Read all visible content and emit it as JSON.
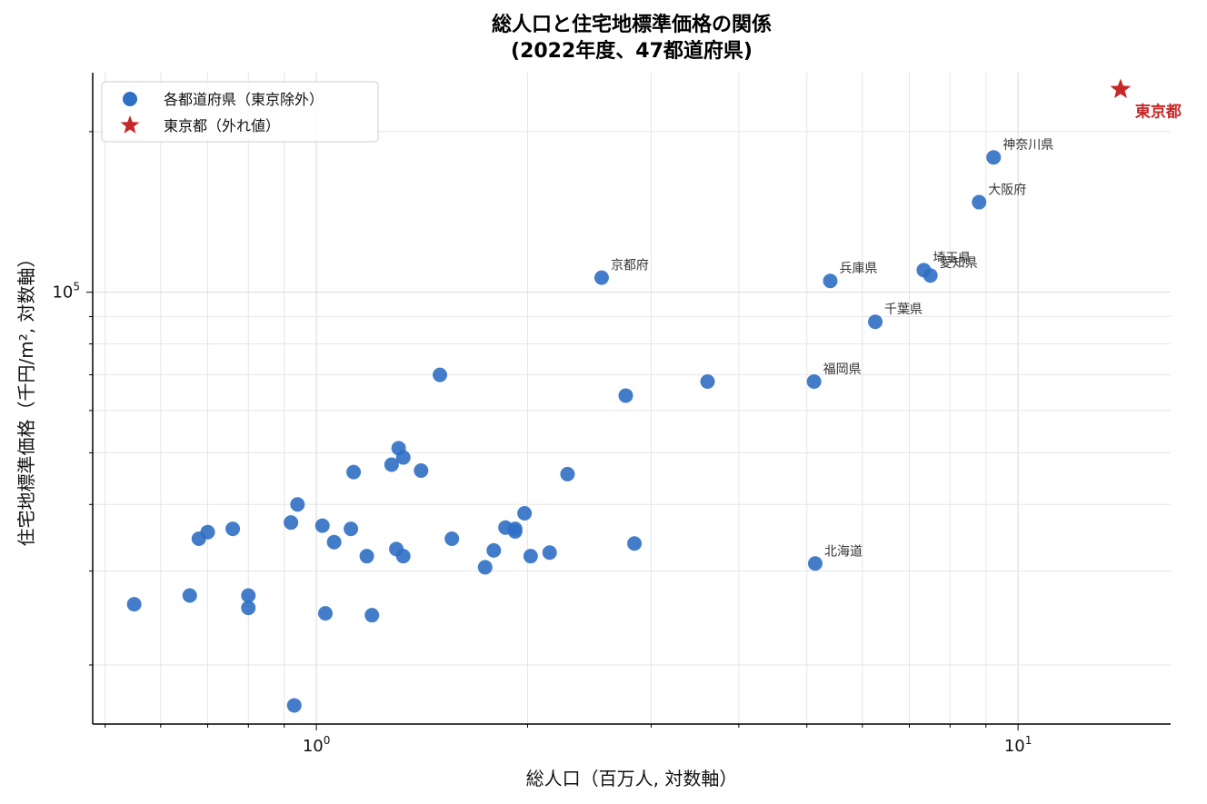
{
  "chart_data": {
    "type": "scatter",
    "title_lines": [
      "総人口と住宅地標準価格の関係",
      "(2022年度、47都道府県)"
    ],
    "xlabel": "総人口（百万人, 対数軸）",
    "ylabel": "住宅地標準価格（千円/m², 対数軸）",
    "x_scale": "log",
    "y_scale": "log",
    "xlim": [
      0.48,
      16.5
    ],
    "ylim": [
      15500,
      258000
    ],
    "grid": true,
    "legend_position": "top-left",
    "x_ticks": [
      {
        "value": 1,
        "base": "10",
        "exp": "0"
      },
      {
        "value": 10,
        "base": "10",
        "exp": "1"
      }
    ],
    "y_ticks": [
      {
        "value": 100000,
        "base": "10",
        "exp": "5"
      }
    ],
    "colors": {
      "points": "#2f6fc4",
      "tokyo": "#c62828"
    },
    "series": [
      {
        "name": "各都道府県（東京除外）",
        "marker": "circle",
        "points": [
          {
            "x": 5.14,
            "y": 31000,
            "label": "北海道"
          },
          {
            "x": 1.2,
            "y": 24800
          },
          {
            "x": 1.18,
            "y": 32000
          },
          {
            "x": 2.28,
            "y": 45600
          },
          {
            "x": 0.93,
            "y": 16800
          },
          {
            "x": 1.03,
            "y": 25000
          },
          {
            "x": 1.79,
            "y": 32800
          },
          {
            "x": 2.84,
            "y": 33800
          },
          {
            "x": 1.92,
            "y": 36000
          },
          {
            "x": 1.92,
            "y": 35600
          },
          {
            "x": 7.34,
            "y": 110000,
            "label": "埼玉県"
          },
          {
            "x": 6.26,
            "y": 88000,
            "label": "千葉県"
          },
          {
            "x": 9.23,
            "y": 179000,
            "label": "神奈川県"
          },
          {
            "x": 2.15,
            "y": 32500
          },
          {
            "x": 1.02,
            "y": 36500
          },
          {
            "x": 1.13,
            "y": 46000
          },
          {
            "x": 0.76,
            "y": 36000
          },
          {
            "x": 0.8,
            "y": 27000
          },
          {
            "x": 2.02,
            "y": 32000
          },
          {
            "x": 1.98,
            "y": 38500
          },
          {
            "x": 3.61,
            "y": 68000
          },
          {
            "x": 7.5,
            "y": 107500,
            "label": "愛知県"
          },
          {
            "x": 1.74,
            "y": 30500
          },
          {
            "x": 1.41,
            "y": 46300
          },
          {
            "x": 2.55,
            "y": 106500,
            "label": "京都府"
          },
          {
            "x": 8.8,
            "y": 147500,
            "label": "大阪府"
          },
          {
            "x": 5.4,
            "y": 105000,
            "label": "兵庫県"
          },
          {
            "x": 1.31,
            "y": 51000
          },
          {
            "x": 0.92,
            "y": 37000
          },
          {
            "x": 0.55,
            "y": 26000
          },
          {
            "x": 0.66,
            "y": 27000
          },
          {
            "x": 1.86,
            "y": 36200
          },
          {
            "x": 2.76,
            "y": 64000
          },
          {
            "x": 1.33,
            "y": 49000
          },
          {
            "x": 0.7,
            "y": 35500
          },
          {
            "x": 0.94,
            "y": 40000
          },
          {
            "x": 1.33,
            "y": 32000
          },
          {
            "x": 0.68,
            "y": 34500
          },
          {
            "x": 5.12,
            "y": 68000,
            "label": "福岡県"
          },
          {
            "x": 0.8,
            "y": 25600
          },
          {
            "x": 1.3,
            "y": 33000
          },
          {
            "x": 1.5,
            "y": 70000
          },
          {
            "x": 1.12,
            "y": 36000
          },
          {
            "x": 1.06,
            "y": 34000
          },
          {
            "x": 1.28,
            "y": 47500
          },
          {
            "x": 1.56,
            "y": 34500
          }
        ]
      },
      {
        "name": "東京都（外れ値）",
        "marker": "star",
        "points": [
          {
            "x": 14.0,
            "y": 240000,
            "label": "東京都"
          }
        ]
      }
    ]
  }
}
